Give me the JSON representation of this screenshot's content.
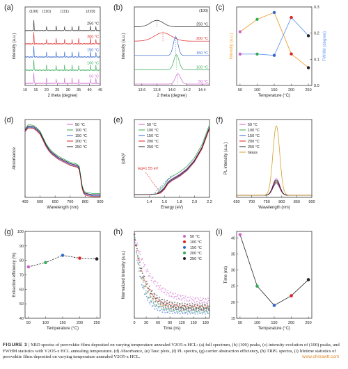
{
  "caption": {
    "label": "FIGURE 3",
    "sep": "|",
    "text": "XRD spectra of perovskite films deposited on varying temperature annealed V2O5-x HCL: (a) full spectrum, (b) (100) peaks, (c) intensity evolution of (100) peaks, and FWHM statistics with V2O5-x HCL annealing temperature. (d) Absorbance, (e) Tauc plots, (f) PL spectra, (g) carrier abstraction efficiency, (h) TRPL spectra, (i) lifetime statistics of perovskite films deposited on varying temperature annealed V2O5-x HCL."
  },
  "watermark": "www.chinawtt.com",
  "colors": {
    "c50": "#cc66cc",
    "c100": "#33aa55",
    "c150": "#3366cc",
    "c200": "#dd2222",
    "c250": "#222222",
    "glass": "#d4a02a",
    "orange": "#f0a030",
    "fwhm": "#6699ee"
  },
  "chart_data": [
    {
      "panel": "(a)",
      "type": "line",
      "xlabel": "2 theta (degree)",
      "ylabel": "Intensity (a.u.)",
      "xlim": [
        10,
        45
      ],
      "xticks": [
        "10",
        "15",
        "20",
        "25",
        "30",
        "35",
        "40",
        "45"
      ],
      "peak_labels": [
        {
          "x": 14.1,
          "text": "(100)"
        },
        {
          "x": 20.0,
          "text": "(110)"
        },
        {
          "x": 28.4,
          "text": "(111)"
        },
        {
          "x": 40.5,
          "text": "(220)"
        }
      ],
      "peaks": [
        14.1,
        20.0,
        24.5,
        28.4,
        31.9,
        35.0,
        40.5,
        43.0
      ],
      "series": [
        {
          "name": "250 °C",
          "color": "#222222",
          "scale": 0.9
        },
        {
          "name": "200 °C",
          "color": "#dd2222",
          "scale": 1.0
        },
        {
          "name": "150 °C",
          "color": "#3366cc",
          "scale": 1.0
        },
        {
          "name": "100 °C",
          "color": "#33aa55",
          "scale": 1.0
        },
        {
          "name": "50 °C",
          "color": "#cc66cc",
          "scale": 1.0
        }
      ]
    },
    {
      "panel": "(b)",
      "type": "line",
      "xlabel": "2 theta (degree)",
      "ylabel": "Intensity (a.u.)",
      "xlim": [
        13.5,
        14.5
      ],
      "xticks": [
        "13.6",
        "13.8",
        "14.0",
        "14.2",
        "14.4"
      ],
      "top_label": "(100)",
      "series": [
        {
          "name": "250 °C",
          "color": "#222222",
          "center": 13.8,
          "peak": 0.35,
          "width": 0.12
        },
        {
          "name": "200 °C",
          "color": "#dd2222",
          "center": 13.88,
          "peak": 0.45,
          "width": 0.16
        },
        {
          "name": "150 °C",
          "color": "#3366cc",
          "center": 14.05,
          "peak": 1.0,
          "width": 0.045
        },
        {
          "name": "100 °C",
          "color": "#33aa55",
          "center": 14.06,
          "peak": 0.8,
          "width": 0.05
        },
        {
          "name": "50 °C",
          "color": "#cc66cc",
          "center": 14.08,
          "peak": 0.55,
          "width": 0.05
        }
      ]
    },
    {
      "panel": "(c)",
      "type": "line",
      "xlabel": "Temperature (°C)",
      "ylabel_left": "Intensity (a.u.)",
      "ylabel_right": "FWHM (degree)",
      "x": [
        50,
        100,
        150,
        200,
        250
      ],
      "xticks": [
        "50",
        "100",
        "150",
        "200",
        "250"
      ],
      "y2lim": [
        0,
        0.3
      ],
      "y2ticks": [
        "0.0",
        "0.1",
        "0.2",
        "0.3"
      ],
      "intensity": [
        0.72,
        0.9,
        1.0,
        0.4,
        0.2
      ],
      "fwhm": [
        0.12,
        0.12,
        0.115,
        0.26,
        0.19
      ],
      "point_colors": [
        "#cc66cc",
        "#33aa55",
        "#3366cc",
        "#dd2222",
        "#222222"
      ]
    },
    {
      "panel": "(d)",
      "type": "line",
      "xlabel": "Wavelength (nm)",
      "ylabel": "Absorbance",
      "xlim": [
        400,
        900
      ],
      "xticks": [
        "400",
        "500",
        "600",
        "700",
        "800",
        "900"
      ],
      "x": [
        400,
        420,
        440,
        460,
        480,
        500,
        520,
        540,
        560,
        580,
        600,
        620,
        640,
        660,
        680,
        700,
        720,
        740,
        750,
        760,
        770,
        780,
        790,
        800,
        820,
        850,
        880,
        900
      ],
      "base": [
        0.85,
        0.9,
        0.9,
        0.89,
        0.86,
        0.82,
        0.74,
        0.66,
        0.6,
        0.56,
        0.53,
        0.5,
        0.48,
        0.46,
        0.44,
        0.42,
        0.41,
        0.4,
        0.39,
        0.37,
        0.25,
        0.12,
        0.06,
        0.04,
        0.03,
        0.02,
        0.02,
        0.02
      ],
      "series": [
        {
          "name": "50 °C",
          "color": "#cc66cc",
          "offset": 0.01
        },
        {
          "name": "100 °C",
          "color": "#33aa55",
          "offset": 0.03
        },
        {
          "name": "150 °C",
          "color": "#3366cc",
          "offset": 0.0
        },
        {
          "name": "200 °C",
          "color": "#dd2222",
          "offset": -0.01
        },
        {
          "name": "250 °C",
          "color": "#222222",
          "offset": 0.015
        }
      ]
    },
    {
      "panel": "(e)",
      "type": "line",
      "xlabel": "Energy (eV)",
      "ylabel": "(αhν)²",
      "xlim": [
        1.2,
        2.2
      ],
      "xticks": [
        "1.4",
        "1.6",
        "1.8",
        "2.0",
        "2.2"
      ],
      "annotation": "Eg=1.55 eV",
      "x": [
        1.2,
        1.3,
        1.4,
        1.5,
        1.55,
        1.6,
        1.65,
        1.7,
        1.8,
        1.9,
        2.0,
        2.1,
        2.2
      ],
      "base": [
        0.0,
        0.0,
        0.0,
        0.01,
        0.03,
        0.08,
        0.16,
        0.2,
        0.26,
        0.34,
        0.46,
        0.64,
        0.92
      ],
      "series": [
        {
          "name": "50 °C",
          "color": "#cc66cc",
          "offset": 0.02
        },
        {
          "name": "100 °C",
          "color": "#33aa55",
          "offset": 0.05
        },
        {
          "name": "150 °C",
          "color": "#3366cc",
          "offset": 0.0
        },
        {
          "name": "200 °C",
          "color": "#dd2222",
          "offset": -0.01
        },
        {
          "name": "250 °C",
          "color": "#222222",
          "offset": 0.01
        }
      ]
    },
    {
      "panel": "(f)",
      "type": "line",
      "xlabel": "Wavelength (nm)",
      "ylabel": "PL intensity (a.u.)",
      "xlim": [
        650,
        900
      ],
      "xticks": [
        "650",
        "700",
        "750",
        "800",
        "850",
        "900"
      ],
      "center": 782,
      "width": 16,
      "series": [
        {
          "name": "50 °C",
          "color": "#cc66cc",
          "peak": 0.24
        },
        {
          "name": "100 °C",
          "color": "#33aa55",
          "peak": 0.2
        },
        {
          "name": "150 °C",
          "color": "#3366cc",
          "peak": 0.17
        },
        {
          "name": "200 °C",
          "color": "#dd2222",
          "peak": 0.19
        },
        {
          "name": "250 °C",
          "color": "#222222",
          "peak": 0.22
        },
        {
          "name": "Glass",
          "color": "#d4a02a",
          "peak": 1.0
        }
      ]
    },
    {
      "panel": "(g)",
      "type": "line",
      "xlabel": "Temperature (°C)",
      "ylabel": "Extraction efficiency (%)",
      "x": [
        50,
        100,
        150,
        200,
        250
      ],
      "xticks": [
        "50",
        "100",
        "150",
        "200",
        "250"
      ],
      "ylim": [
        40,
        100
      ],
      "yticks": [
        "40",
        "50",
        "60",
        "70",
        "80",
        "90",
        "100"
      ],
      "y": [
        75.5,
        78.5,
        83.5,
        81.5,
        81.0
      ],
      "point_colors": [
        "#cc66cc",
        "#33aa55",
        "#3366cc",
        "#dd2222",
        "#222222"
      ]
    },
    {
      "panel": "(h)",
      "type": "scatter",
      "xlabel": "Time (ns)",
      "ylabel": "Normalized Intensity (a.u.)",
      "xlim": [
        0,
        190
      ],
      "xticks": [
        "0",
        "30",
        "60",
        "90",
        "120",
        "150",
        "180"
      ],
      "series": [
        {
          "name": "50 °C",
          "color": "#cc66cc",
          "tau": 41,
          "floor": 0.2
        },
        {
          "name": "100 °C",
          "color": "#dd2222",
          "tau": 25,
          "floor": 0.12
        },
        {
          "name": "150 °C",
          "color": "#3366cc",
          "tau": 19,
          "floor": 0.08
        },
        {
          "name": "200 °C",
          "color": "#33aa55",
          "tau": 22,
          "floor": 0.1
        },
        {
          "name": "250 °C",
          "color": "#222222",
          "tau": 27,
          "floor": 0.14
        }
      ]
    },
    {
      "panel": "(i)",
      "type": "line",
      "xlabel": "Temperature (°C)",
      "ylabel": "Time (ns)",
      "x": [
        50,
        100,
        150,
        200,
        250
      ],
      "xticks": [
        "50",
        "100",
        "150",
        "200",
        "250"
      ],
      "ylim": [
        15,
        42
      ],
      "yticks": [
        "15",
        "20",
        "25",
        "30",
        "35",
        "40"
      ],
      "y": [
        41,
        25,
        19,
        22,
        27
      ],
      "point_colors": [
        "#cc66cc",
        "#33aa55",
        "#3366cc",
        "#dd2222",
        "#222222"
      ]
    }
  ]
}
